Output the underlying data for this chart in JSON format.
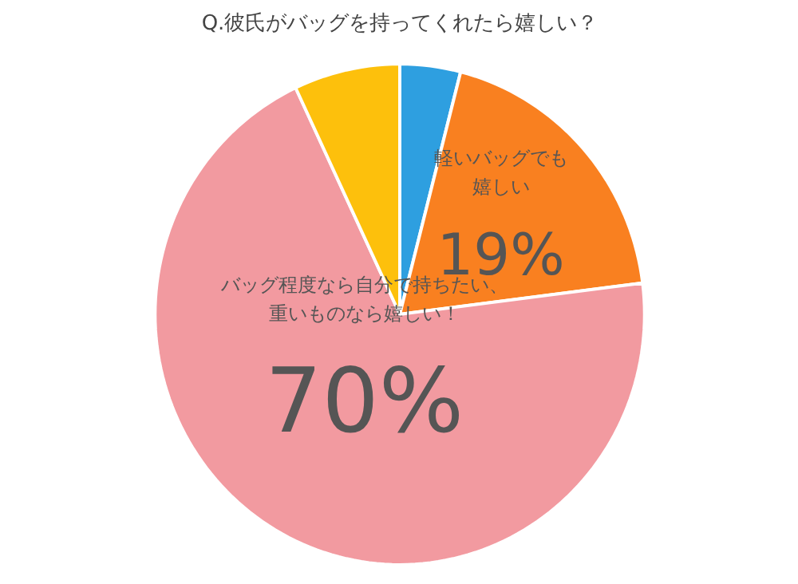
{
  "chart_data": {
    "type": "pie",
    "title": "Q.彼氏がバッグを持ってくれたら嬉しい？",
    "categories": [
      null,
      "軽いバッグでも嬉しい",
      "バッグ程度なら自分で持ちたい、重いものなら嬉しい！",
      null
    ],
    "values": [
      4,
      19,
      70,
      7
    ],
    "colors": [
      "#2e9fe0",
      "#f98020",
      "#f29aa0",
      "#fdc00c"
    ],
    "value_labels": [
      null,
      "19%",
      "70%",
      null
    ]
  }
}
